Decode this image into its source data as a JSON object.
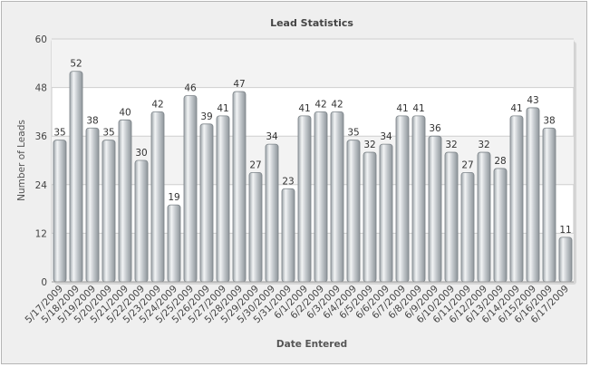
{
  "chart_data": {
    "type": "bar",
    "title": "Lead Statistics",
    "xlabel": "Date Entered",
    "ylabel": "Number of Leads",
    "ylim": [
      0,
      60
    ],
    "yticks": [
      0,
      12,
      24,
      36,
      48,
      60
    ],
    "grid": true,
    "legend": "none",
    "categories": [
      "5/17/2009",
      "5/18/2009",
      "5/19/2009",
      "5/20/2009",
      "5/21/2009",
      "5/22/2009",
      "5/23/2009",
      "5/24/2009",
      "5/25/2009",
      "5/26/2009",
      "5/27/2009",
      "5/28/2009",
      "5/29/2009",
      "5/30/2009",
      "5/31/2009",
      "6/1/2009",
      "6/2/2009",
      "6/3/2009",
      "6/4/2009",
      "6/5/2009",
      "6/6/2009",
      "6/7/2009",
      "6/8/2009",
      "6/9/2009",
      "6/10/2009",
      "6/11/2009",
      "6/12/2009",
      "6/13/2009",
      "6/14/2009",
      "6/15/2009",
      "6/16/2009",
      "6/17/2009"
    ],
    "values": [
      35,
      52,
      38,
      35,
      40,
      30,
      42,
      19,
      46,
      39,
      41,
      47,
      27,
      34,
      23,
      41,
      42,
      42,
      35,
      32,
      34,
      41,
      41,
      36,
      32,
      27,
      32,
      28,
      41,
      43,
      38,
      11
    ],
    "colors": {
      "bar": "#c4c9cd",
      "bar_highlight": "#f2f4f5",
      "bar_edge": "#7d8489",
      "plot_bg": "#ffffff",
      "band": "#f3f3f3",
      "grid": "#cfcfcf",
      "frame_bg": "#efefef"
    }
  }
}
